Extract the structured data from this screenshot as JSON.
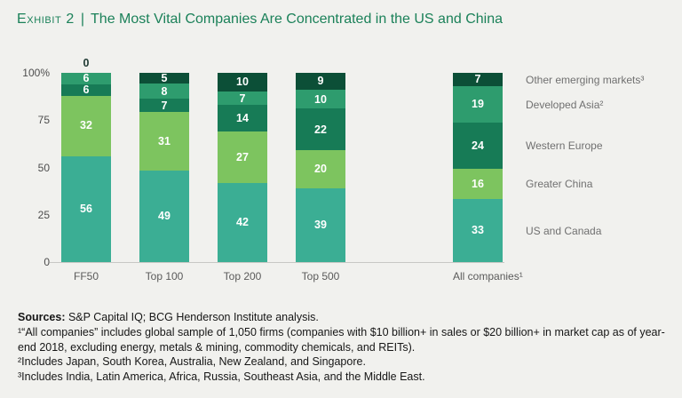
{
  "title": {
    "exhibit": "Exhibit 2",
    "separator": "|",
    "main": "The Most Vital Companies Are Concentrated in the US and China"
  },
  "colors": {
    "background": "#f1f1ee",
    "title_green": "#1b8159",
    "zero_label": "#1e3932",
    "axis_line": "#c8c8c5"
  },
  "chart_data": {
    "type": "bar",
    "stacked": true,
    "title": "The Most Vital Companies Are Concentrated in the US and China",
    "xlabel": "",
    "ylabel": "",
    "ylim": [
      0,
      100
    ],
    "yticks": [
      "100%",
      "75",
      "50",
      "25",
      "0"
    ],
    "grid": false,
    "legend_position": "right",
    "categories": [
      "FF50",
      "Top 100",
      "Top 200",
      "Top 500",
      "All companies¹"
    ],
    "series": [
      {
        "name": "US and Canada",
        "color": "#3bae94",
        "values": [
          56,
          49,
          42,
          39,
          33
        ]
      },
      {
        "name": "Greater China",
        "color": "#7dc45f",
        "values": [
          32,
          31,
          27,
          20,
          16
        ]
      },
      {
        "name": "Western Europe",
        "color": "#177b56",
        "values": [
          6,
          7,
          14,
          22,
          24
        ]
      },
      {
        "name": "Developed Asia²",
        "color": "#2e9c6e",
        "values": [
          6,
          8,
          7,
          10,
          19
        ]
      },
      {
        "name": "Other emerging markets³",
        "color": "#0c4f37",
        "values": [
          0,
          5,
          10,
          9,
          7
        ]
      }
    ]
  },
  "footer": {
    "sources_label": "Sources:",
    "sources_text": " S&P Capital IQ; BCG Henderson Institute analysis.",
    "notes": [
      "¹“All companies” includes global sample of 1,050 firms (companies with $10 billion+ in sales or $20 billion+ in market cap as of year-end 2018, excluding energy, metals & mining, commodity chemicals, and REITs).",
      "²Includes Japan, South Korea, Australia, New Zealand, and Singapore.",
      "³Includes India, Latin America, Africa, Russia, Southeast Asia, and the Middle East."
    ]
  }
}
